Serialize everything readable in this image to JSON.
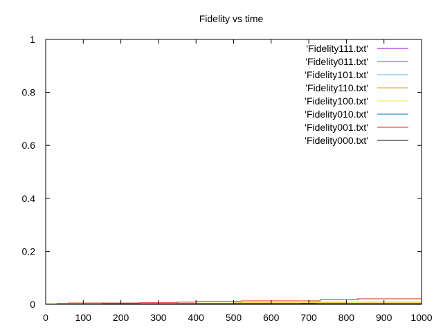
{
  "chart_data": {
    "type": "line",
    "title": "Fidelity vs time",
    "xlabel": "",
    "ylabel": "",
    "xlim": [
      0,
      1000
    ],
    "ylim": [
      0,
      1
    ],
    "xticks": [
      0,
      100,
      200,
      300,
      400,
      500,
      600,
      700,
      800,
      900,
      1000
    ],
    "yticks": [
      0,
      0.2,
      0.4,
      0.6,
      0.8,
      1
    ],
    "grid": false,
    "legend_position": "top-right",
    "series": [
      {
        "name": "'Fidelity111.txt'",
        "color": "#9400d3",
        "x": [
          0,
          1000
        ],
        "y": [
          0.0005,
          0.0005
        ]
      },
      {
        "name": "'Fidelity011.txt'",
        "color": "#009e73",
        "x": [
          0,
          1000
        ],
        "y": [
          0.001,
          0.001
        ]
      },
      {
        "name": "'Fidelity101.txt'",
        "color": "#56b4e9",
        "x": [
          0,
          1000
        ],
        "y": [
          0.001,
          0.001
        ]
      },
      {
        "name": "'Fidelity110.txt'",
        "color": "#e69f00",
        "x": [
          0,
          60,
          250,
          300,
          500,
          700,
          850,
          1000
        ],
        "y": [
          0.002,
          0.004,
          0.005,
          0.004,
          0.006,
          0.008,
          0.009,
          0.009
        ]
      },
      {
        "name": "'Fidelity100.txt'",
        "color": "#f0e442",
        "x": [
          0,
          200,
          400,
          600,
          800,
          1000
        ],
        "y": [
          0.003,
          0.004,
          0.005,
          0.006,
          0.007,
          0.007
        ]
      },
      {
        "name": "'Fidelity010.txt'",
        "color": "#0072b2",
        "x": [
          0,
          150,
          350,
          500,
          700,
          850,
          1000
        ],
        "y": [
          0.001,
          0.002,
          0.002,
          0.003,
          0.003,
          0.003,
          0.003
        ]
      },
      {
        "name": "'Fidelity001.txt'",
        "color": "#e51e10",
        "x": [
          0,
          30,
          60,
          250,
          350,
          400,
          520,
          730,
          830,
          1000
        ],
        "y": [
          0,
          0.003,
          0.005,
          0.006,
          0.008,
          0.011,
          0.013,
          0.017,
          0.021,
          0.022
        ]
      },
      {
        "name": "'Fidelity000.txt'",
        "color": "#000000",
        "x": [
          0,
          150,
          350,
          500,
          680,
          720,
          1000
        ],
        "y": [
          0,
          0.001,
          0.002,
          0.002,
          0.003,
          0.002,
          0.002
        ]
      }
    ]
  }
}
